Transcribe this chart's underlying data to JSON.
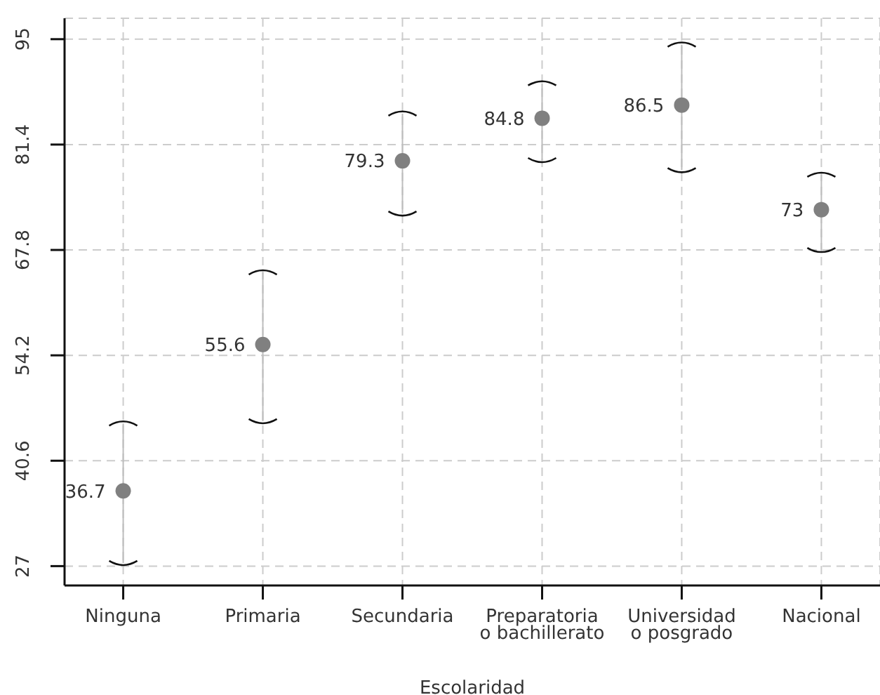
{
  "chart_data": {
    "type": "scatter",
    "xlabel": "Escolaridad",
    "categories": [
      "Ninguna",
      "Primaria",
      "Secundaria",
      "Preparatoria\no bachillerato",
      "Universidad\no posgrado",
      "Nacional"
    ],
    "values": [
      36.7,
      55.6,
      79.3,
      84.8,
      86.5,
      73
    ],
    "errors": [
      [
        27.4,
        45.4
      ],
      [
        45.7,
        64.9
      ],
      [
        72.5,
        85.4
      ],
      [
        79.4,
        89.3
      ],
      [
        78.1,
        94.3
      ],
      [
        67.8,
        77.5
      ]
    ],
    "color": "#808080",
    "marker": "circle",
    "data_labels": true,
    "ylim": [
      24.5,
      97.7
    ],
    "yticks": [
      27,
      40.6,
      54.2,
      67.8,
      81.4,
      95
    ],
    "grid": true
  }
}
